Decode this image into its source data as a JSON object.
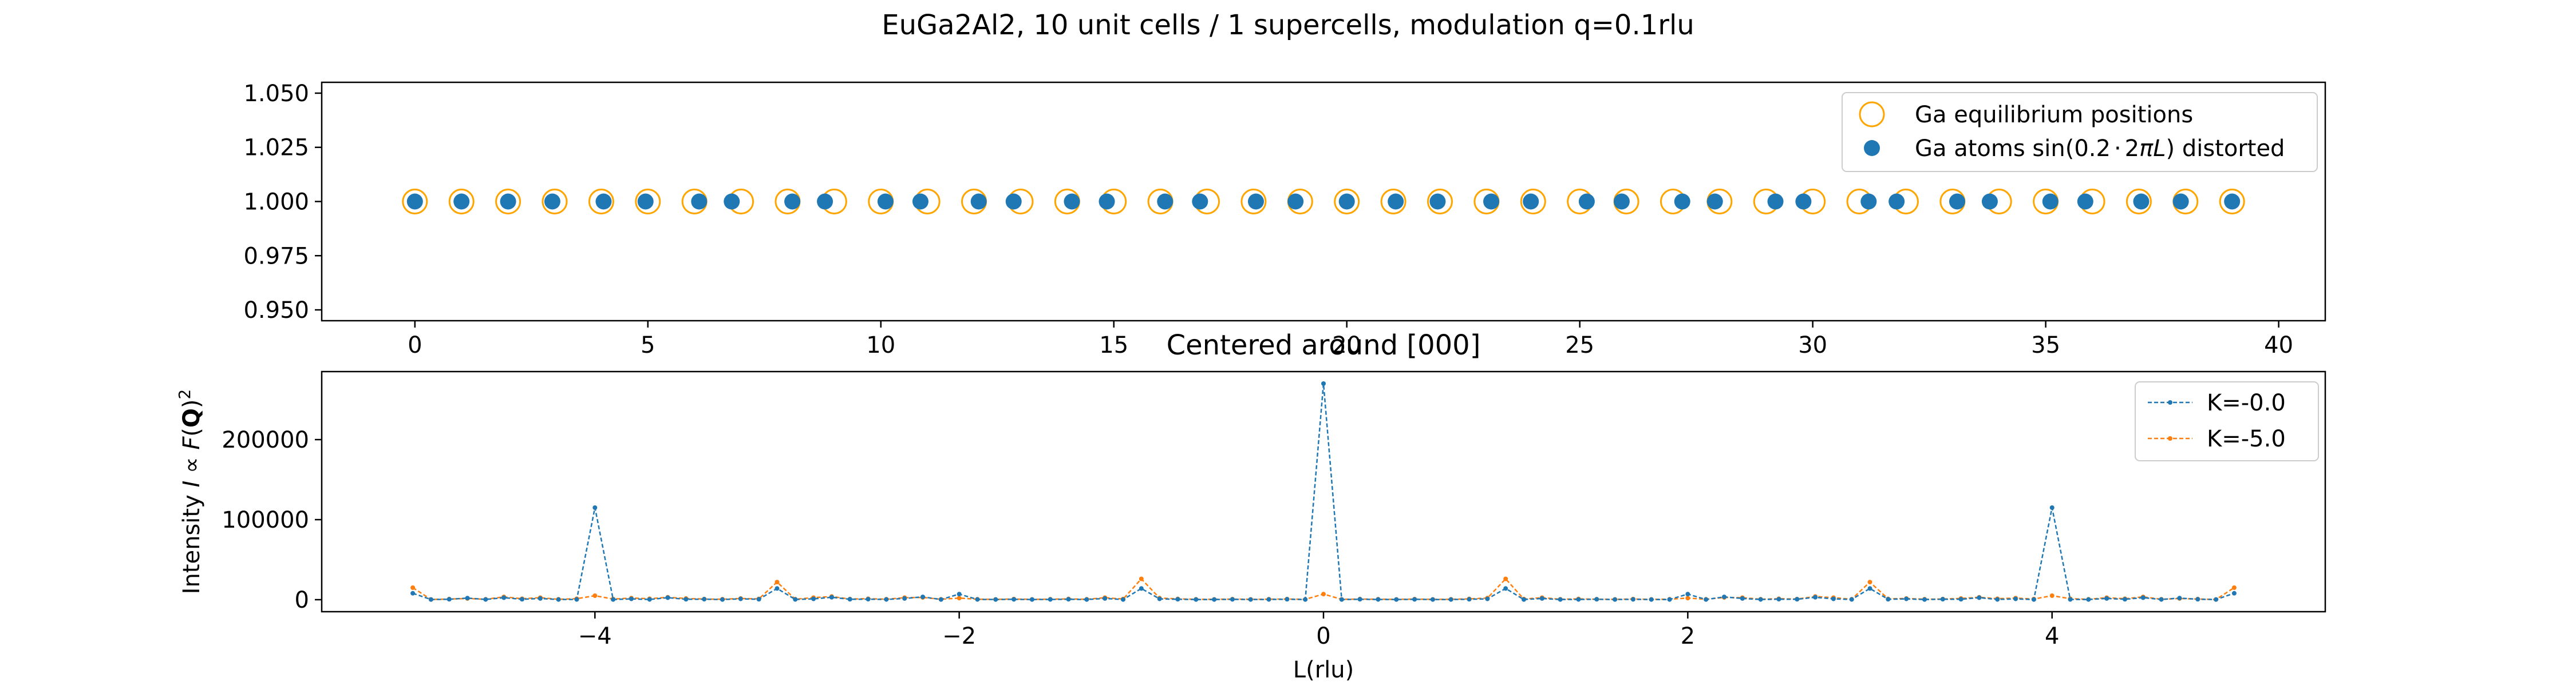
{
  "figure": {
    "suptitle": "EuGa2Al2, 10 unit cells / 1 supercells, modulation q=0.1rlu"
  },
  "chart_data": [
    {
      "type": "scatter",
      "title": "",
      "xlabel": "",
      "ylabel": "",
      "xlim": [
        -2,
        41
      ],
      "ylim": [
        0.945,
        1.055
      ],
      "xticks": [
        "0",
        "5",
        "10",
        "15",
        "20",
        "25",
        "30",
        "35",
        "40"
      ],
      "yticks": [
        "0.950",
        "0.975",
        "1.000",
        "1.025",
        "1.050"
      ],
      "legend_position": "top-right",
      "series": [
        {
          "name": "Ga equilibrium positions",
          "marker": "open-circle",
          "color": "#FFA500",
          "x": [
            0,
            1,
            2,
            3,
            4,
            5,
            6,
            7,
            8,
            9,
            10,
            11,
            12,
            13,
            14,
            15,
            16,
            17,
            18,
            19,
            20,
            21,
            22,
            23,
            24,
            25,
            26,
            27,
            28,
            29,
            30,
            31,
            32,
            33,
            34,
            35,
            36,
            37,
            38,
            39
          ],
          "y": [
            1,
            1,
            1,
            1,
            1,
            1,
            1,
            1,
            1,
            1,
            1,
            1,
            1,
            1,
            1,
            1,
            1,
            1,
            1,
            1,
            1,
            1,
            1,
            1,
            1,
            1,
            1,
            1,
            1,
            1,
            1,
            1,
            1,
            1,
            1,
            1,
            1,
            1,
            1,
            1
          ]
        },
        {
          "name": "Ga atoms sin(0.2·2πL) distorted",
          "name_parts": {
            "prefix": "Ga atoms sin(0.2",
            "dot": "·",
            "two": "2",
            "pi": "π",
            "L": "L",
            "suffix": ") distorted"
          },
          "marker": "filled-circle",
          "color": "#1f77b4",
          "x": [
            0,
            1,
            2,
            2.95,
            4.05,
            4.95,
            6.1,
            6.8,
            8.1,
            8.8,
            10.1,
            10.85,
            12.1,
            12.85,
            14.1,
            14.85,
            16.1,
            16.85,
            18.05,
            18.9,
            20,
            21.05,
            21.95,
            23.1,
            23.95,
            25.15,
            25.9,
            27.2,
            27.9,
            29.2,
            29.8,
            31.2,
            31.8,
            33.1,
            33.8,
            35.1,
            35.85,
            37.05,
            37.9,
            39
          ],
          "y": [
            1,
            1,
            1,
            1,
            1,
            1,
            1,
            1,
            1,
            1,
            1,
            1,
            1,
            1,
            1,
            1,
            1,
            1,
            1,
            1,
            1,
            1,
            1,
            1,
            1,
            1,
            1,
            1,
            1,
            1,
            1,
            1,
            1,
            1,
            1,
            1,
            1,
            1,
            1,
            1
          ]
        }
      ]
    },
    {
      "type": "line",
      "title": "Centered around [000]",
      "xlabel": "L(rlu)",
      "ylabel": "Intensity I ∝ F(Q)²",
      "ylabel_parts": {
        "a": "Intensity ",
        "I": "I",
        "prop": " ∝ ",
        "F": "F",
        "open": "(",
        "Q": "Q",
        "close": ")",
        "sq": "2"
      },
      "xlim": [
        -5.5,
        5.5
      ],
      "ylim": [
        -15000,
        285000
      ],
      "xticks": [
        "−4",
        "−2",
        "0",
        "2",
        "4"
      ],
      "xtick_values": [
        -4,
        -2,
        0,
        2,
        4
      ],
      "yticks": [
        "0",
        "100000",
        "200000"
      ],
      "ytick_values": [
        0,
        100000,
        200000
      ],
      "legend_position": "top-right",
      "x": [
        -5.0,
        -4.9,
        -4.8,
        -4.7,
        -4.6,
        -4.5,
        -4.4,
        -4.3,
        -4.2,
        -4.1,
        -4.0,
        -3.9,
        -3.8,
        -3.7,
        -3.6,
        -3.5,
        -3.4,
        -3.3,
        -3.2,
        -3.1,
        -3.0,
        -2.9,
        -2.8,
        -2.7,
        -2.6,
        -2.5,
        -2.4,
        -2.3,
        -2.2,
        -2.1,
        -2.0,
        -1.9,
        -1.8,
        -1.7,
        -1.6,
        -1.5,
        -1.4,
        -1.3,
        -1.2,
        -1.1,
        -1.0,
        -0.9,
        -0.8,
        -0.7,
        -0.6,
        -0.5,
        -0.4,
        -0.3,
        -0.2,
        -0.1,
        0.0,
        0.1,
        0.2,
        0.3,
        0.4,
        0.5,
        0.6,
        0.7,
        0.8,
        0.9,
        1.0,
        1.1,
        1.2,
        1.3,
        1.4,
        1.5,
        1.6,
        1.7,
        1.8,
        1.9,
        2.0,
        2.1,
        2.2,
        2.3,
        2.4,
        2.5,
        2.6,
        2.7,
        2.8,
        2.9,
        3.0,
        3.1,
        3.2,
        3.3,
        3.4,
        3.5,
        3.6,
        3.7,
        3.8,
        3.9,
        4.0,
        4.1,
        4.2,
        4.3,
        4.4,
        4.5,
        4.6,
        4.7,
        4.8,
        4.9,
        5.0
      ],
      "series": [
        {
          "name": "K=-0.0",
          "color": "#1f77b4",
          "values": [
            8000,
            200,
            500,
            2000,
            300,
            2500,
            500,
            1500,
            200,
            300,
            115000,
            200,
            1000,
            300,
            2500,
            500,
            600,
            200,
            1000,
            500,
            14000,
            300,
            1000,
            3000,
            500,
            600,
            300,
            1500,
            3500,
            200,
            7000,
            300,
            200,
            400,
            200,
            300,
            500,
            200,
            1500,
            200,
            14000,
            1000,
            500,
            200,
            200,
            400,
            200,
            300,
            500,
            200,
            270000,
            200,
            500,
            300,
            200,
            400,
            200,
            200,
            500,
            1000,
            14000,
            200,
            1500,
            200,
            300,
            500,
            200,
            400,
            200,
            200,
            7000,
            200,
            3500,
            1500,
            300,
            600,
            500,
            3000,
            1000,
            300,
            14000,
            500,
            1000,
            200,
            600,
            500,
            2500,
            300,
            1000,
            200,
            115000,
            300,
            200,
            1500,
            500,
            2500,
            300,
            2000,
            500,
            200,
            8000
          ]
        },
        {
          "name": "K=-5.0",
          "color": "#ff7f0e",
          "values": [
            15000,
            300,
            800,
            1500,
            500,
            3500,
            1200,
            2500,
            500,
            1200,
            5000,
            800,
            2000,
            1200,
            3000,
            1500,
            800,
            600,
            1500,
            1000,
            22000,
            600,
            2500,
            4000,
            800,
            1200,
            600,
            2500,
            2800,
            500,
            2000,
            600,
            400,
            800,
            400,
            600,
            1000,
            500,
            2500,
            800,
            26000,
            2000,
            1000,
            500,
            400,
            700,
            400,
            600,
            800,
            400,
            7000,
            400,
            800,
            600,
            400,
            700,
            400,
            500,
            1000,
            2000,
            26000,
            800,
            2500,
            500,
            1000,
            600,
            400,
            800,
            400,
            600,
            2000,
            500,
            2800,
            2500,
            600,
            1200,
            800,
            4000,
            2500,
            600,
            22000,
            1000,
            1500,
            600,
            800,
            1500,
            3000,
            1200,
            2000,
            800,
            5000,
            1200,
            500,
            2500,
            1200,
            3500,
            500,
            1500,
            800,
            300,
            15000
          ]
        }
      ]
    }
  ]
}
